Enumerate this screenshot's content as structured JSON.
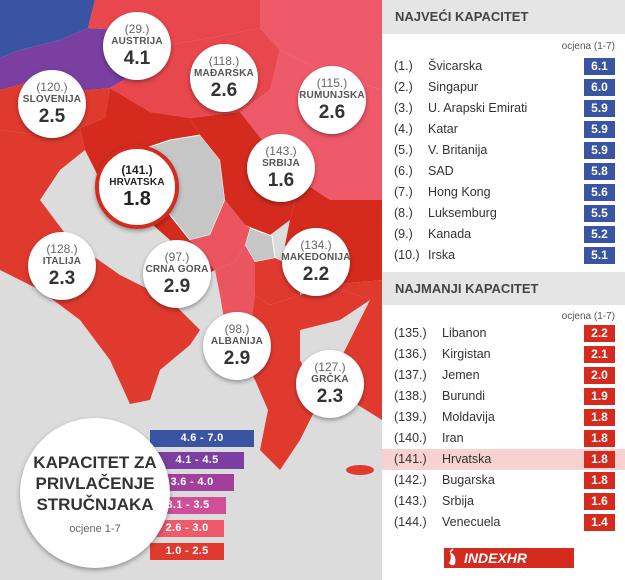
{
  "map": {
    "countries": [
      {
        "id": "austria",
        "rank": "(29.)",
        "name": "AUSTRIJA",
        "score": "4.1",
        "color": "#7a3fa0"
      },
      {
        "id": "madarska",
        "rank": "(118.)",
        "name": "MAĐARSKA",
        "score": "2.6",
        "color": "#e8474d"
      },
      {
        "id": "rumunjska",
        "rank": "(115.)",
        "name": "RUMUNJSKA",
        "score": "2.6",
        "color": "#ef5a6a"
      },
      {
        "id": "slovenija",
        "rank": "(120.)",
        "name": "SLOVENIJA",
        "score": "2.5",
        "color": "#e03a2f"
      },
      {
        "id": "srbija",
        "rank": "(143.)",
        "name": "SRBIJA",
        "score": "1.6",
        "color": "#d52b1e"
      },
      {
        "id": "hrvatska",
        "rank": "(141.)",
        "name": "HRVATSKA",
        "score": "1.8",
        "color": "#d52b1e"
      },
      {
        "id": "italija",
        "rank": "(128.)",
        "name": "ITALIJA",
        "score": "2.3",
        "color": "#e03a2f"
      },
      {
        "id": "crna-gora",
        "rank": "(97.)",
        "name": "CRNA GORA",
        "score": "2.9",
        "color": "#ea5560"
      },
      {
        "id": "makedonija",
        "rank": "(134.)",
        "name": "MAKEDONIJA",
        "score": "2.2",
        "color": "#e03a2f"
      },
      {
        "id": "albanija",
        "rank": "(98.)",
        "name": "ALBANIJA",
        "score": "2.9",
        "color": "#ea5560"
      },
      {
        "id": "grcka",
        "rank": "(127.)",
        "name": "GRČKA",
        "score": "2.3",
        "color": "#e03a2f"
      }
    ]
  },
  "legend": {
    "title_lines": [
      "KAPACITET ZA",
      "PRIVLAČENJE",
      "STRUČNJAKA"
    ],
    "subtitle": "ocjene 1-7",
    "bins": [
      {
        "label": "4.6 - 7.0",
        "color": "#3a54a4"
      },
      {
        "label": "4.1 - 4.5",
        "color": "#7a3fa0"
      },
      {
        "label": "3.6 - 4.0",
        "color": "#a23f9c"
      },
      {
        "label": "3.1 - 3.5",
        "color": "#cf4f98"
      },
      {
        "label": "2.6 - 3.0",
        "color": "#ef5a6a"
      },
      {
        "label": "1.0 - 2.5",
        "color": "#e03a2f"
      }
    ]
  },
  "top": {
    "title": "NAJVEĆI KAPACITET",
    "score_label": "ocjena (1-7)",
    "rows": [
      {
        "rank": "(1.)",
        "country": "Švicarska",
        "score": "6.1"
      },
      {
        "rank": "(2.)",
        "country": "Singapur",
        "score": "6.0"
      },
      {
        "rank": "(3.)",
        "country": "U. Arapski Emirati",
        "score": "5.9"
      },
      {
        "rank": "(4.)",
        "country": "Katar",
        "score": "5.9"
      },
      {
        "rank": "(5.)",
        "country": "V. Britanija",
        "score": "5.9"
      },
      {
        "rank": "(6.)",
        "country": "SAD",
        "score": "5.8"
      },
      {
        "rank": "(7.)",
        "country": "Hong Kong",
        "score": "5.6"
      },
      {
        "rank": "(8.)",
        "country": "Luksemburg",
        "score": "5.5"
      },
      {
        "rank": "(9.)",
        "country": "Kanada",
        "score": "5.2"
      },
      {
        "rank": "(10.)",
        "country": "Irska",
        "score": "5.1"
      }
    ]
  },
  "bottom": {
    "title": "NAJMANJI KAPACITET",
    "score_label": "ocjena (1-7)",
    "rows": [
      {
        "rank": "(135.)",
        "country": "Libanon",
        "score": "2.2"
      },
      {
        "rank": "(136.)",
        "country": "Kirgistan",
        "score": "2.1"
      },
      {
        "rank": "(137.)",
        "country": "Jemen",
        "score": "2.0"
      },
      {
        "rank": "(138.)",
        "country": "Burundi",
        "score": "1.9"
      },
      {
        "rank": "(139.)",
        "country": "Moldavija",
        "score": "1.8"
      },
      {
        "rank": "(140.)",
        "country": "Iran",
        "score": "1.8"
      },
      {
        "rank": "(141.)",
        "country": "Hrvatska",
        "score": "1.8",
        "highlight": true
      },
      {
        "rank": "(142.)",
        "country": "Bugarska",
        "score": "1.8"
      },
      {
        "rank": "(143.)",
        "country": "Srbija",
        "score": "1.6"
      },
      {
        "rank": "(144.)",
        "country": "Venecuela",
        "score": "1.4"
      }
    ]
  },
  "logo": {
    "text": "INDEXHR",
    "icon": "chili-pepper-icon"
  }
}
